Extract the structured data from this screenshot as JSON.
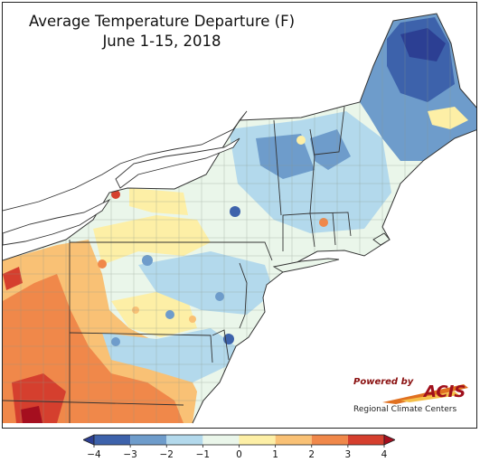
{
  "title": {
    "line1": "Average Temperature Departure (F)",
    "line2": "June 1-15, 2018"
  },
  "legend": {
    "ticks": [
      "−4",
      "−3",
      "−2",
      "−1",
      "0",
      "1",
      "2",
      "3",
      "4"
    ],
    "bins": [
      {
        "label": "< -4",
        "color": "#2c3f93"
      },
      {
        "label": "-4 to -3",
        "color": "#3d62ab"
      },
      {
        "label": "-3 to -2",
        "color": "#6e9ccb"
      },
      {
        "label": "-2 to -1",
        "color": "#b3d9ec"
      },
      {
        "label": "-1 to 0",
        "color": "#eaf6ea"
      },
      {
        "label": "0 to 1",
        "color": "#fdefa6"
      },
      {
        "label": "1 to 2",
        "color": "#f9c175"
      },
      {
        "label": "2 to 3",
        "color": "#f0884a"
      },
      {
        "label": "3 to 4",
        "color": "#d53f2e"
      },
      {
        "label": "> 4",
        "color": "#a50f1f"
      }
    ]
  },
  "logo": {
    "powered_by": "Powered by",
    "name": "ACIS",
    "tagline": "Regional Climate Centers"
  }
}
